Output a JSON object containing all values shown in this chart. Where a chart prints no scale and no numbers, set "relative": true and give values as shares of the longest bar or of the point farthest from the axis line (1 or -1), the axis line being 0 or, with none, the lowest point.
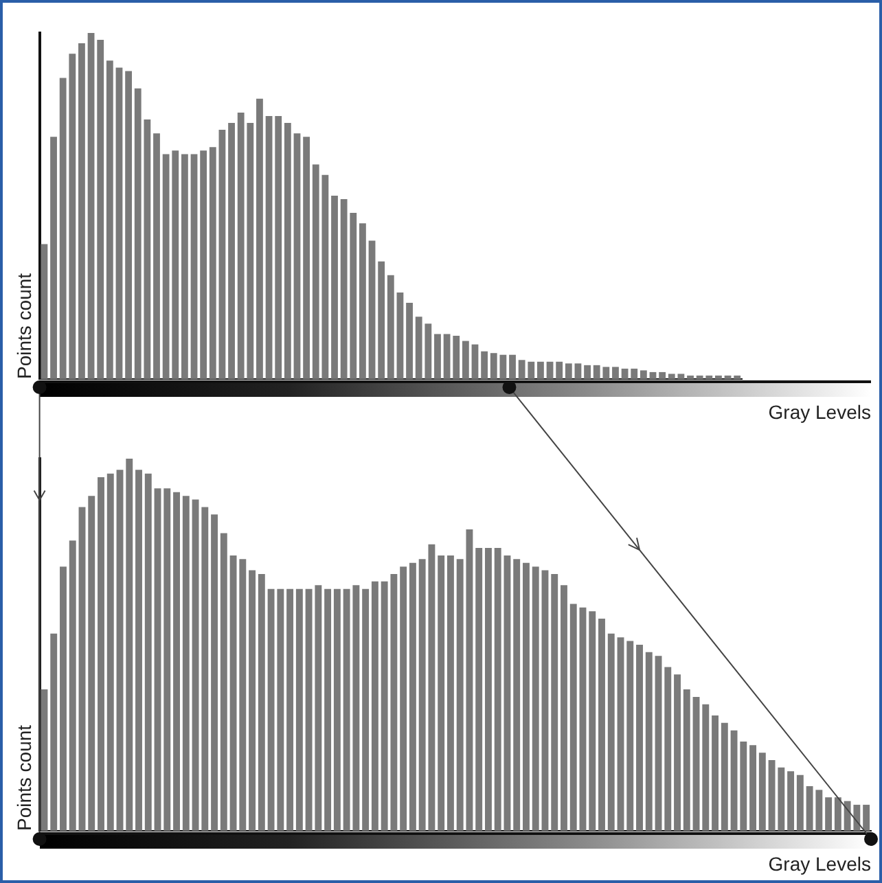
{
  "chart_data": [
    {
      "type": "bar",
      "relative": true,
      "xlabel": "Gray Levels",
      "ylabel": "Points count",
      "color": "#7a7a7a",
      "categories": [
        null,
        null,
        null,
        null,
        null,
        null,
        null,
        null,
        null,
        null,
        null,
        null,
        null,
        null,
        null,
        null,
        null,
        null,
        null,
        null,
        null,
        null,
        null,
        null,
        null,
        null,
        null,
        null,
        null,
        null,
        null,
        null,
        null,
        null,
        null,
        null,
        null,
        null,
        null,
        null,
        null,
        null,
        null,
        null,
        null,
        null,
        null,
        null,
        null,
        null,
        null,
        null,
        null,
        null,
        null,
        null,
        null,
        null,
        null,
        null,
        null,
        null,
        null,
        null,
        null,
        null,
        null,
        null,
        null,
        null,
        null,
        null,
        null,
        null,
        null
      ],
      "values": [
        0.39,
        0.7,
        0.87,
        0.94,
        0.97,
        1,
        0.98,
        0.92,
        0.9,
        0.89,
        0.84,
        0.75,
        0.71,
        0.65,
        0.66,
        0.65,
        0.65,
        0.66,
        0.67,
        0.72,
        0.74,
        0.77,
        0.74,
        0.81,
        0.76,
        0.76,
        0.74,
        0.71,
        0.7,
        0.62,
        0.59,
        0.53,
        0.52,
        0.48,
        0.45,
        0.4,
        0.34,
        0.3,
        0.25,
        0.22,
        0.18,
        0.16,
        0.13,
        0.13,
        0.125,
        0.11,
        0.1,
        0.08,
        0.075,
        0.07,
        0.07,
        0.055,
        0.05,
        0.05,
        0.05,
        0.05,
        0.045,
        0.045,
        0.04,
        0.04,
        0.035,
        0.035,
        0.03,
        0.03,
        0.025,
        0.02,
        0.02,
        0.015,
        0.015,
        0.01,
        0.01,
        0.01,
        0.01,
        0.01,
        0.01
      ]
    },
    {
      "type": "bar",
      "relative": true,
      "xlabel": "Gray Levels",
      "ylabel": "Points count",
      "color": "#7a7a7a",
      "categories": [
        null,
        null,
        null,
        null,
        null,
        null,
        null,
        null,
        null,
        null,
        null,
        null,
        null,
        null,
        null,
        null,
        null,
        null,
        null,
        null,
        null,
        null,
        null,
        null,
        null,
        null,
        null,
        null,
        null,
        null,
        null,
        null,
        null,
        null,
        null,
        null,
        null,
        null,
        null,
        null,
        null,
        null,
        null,
        null,
        null,
        null,
        null,
        null,
        null,
        null,
        null,
        null,
        null,
        null,
        null,
        null,
        null,
        null,
        null,
        null,
        null,
        null,
        null,
        null,
        null,
        null,
        null,
        null,
        null,
        null,
        null,
        null,
        null,
        null,
        null,
        null,
        null,
        null,
        null,
        null,
        null,
        null,
        null,
        null,
        null,
        null,
        null,
        null
      ],
      "values": [
        0.38,
        0.53,
        0.71,
        0.78,
        0.87,
        0.9,
        0.95,
        0.96,
        0.97,
        1,
        0.97,
        0.96,
        0.92,
        0.92,
        0.91,
        0.9,
        0.89,
        0.87,
        0.85,
        0.8,
        0.74,
        0.73,
        0.7,
        0.69,
        0.65,
        0.65,
        0.65,
        0.65,
        0.65,
        0.66,
        0.65,
        0.65,
        0.65,
        0.66,
        0.65,
        0.67,
        0.67,
        0.69,
        0.71,
        0.72,
        0.73,
        0.77,
        0.74,
        0.74,
        0.73,
        0.81,
        0.76,
        0.76,
        0.76,
        0.74,
        0.73,
        0.72,
        0.71,
        0.7,
        0.69,
        0.66,
        0.61,
        0.6,
        0.59,
        0.57,
        0.53,
        0.52,
        0.51,
        0.5,
        0.48,
        0.47,
        0.44,
        0.42,
        0.38,
        0.36,
        0.34,
        0.31,
        0.29,
        0.27,
        0.24,
        0.23,
        0.21,
        0.19,
        0.17,
        0.16,
        0.15,
        0.12,
        0.11,
        0.09,
        0.09,
        0.08,
        0.07,
        0.07
      ]
    }
  ]
}
